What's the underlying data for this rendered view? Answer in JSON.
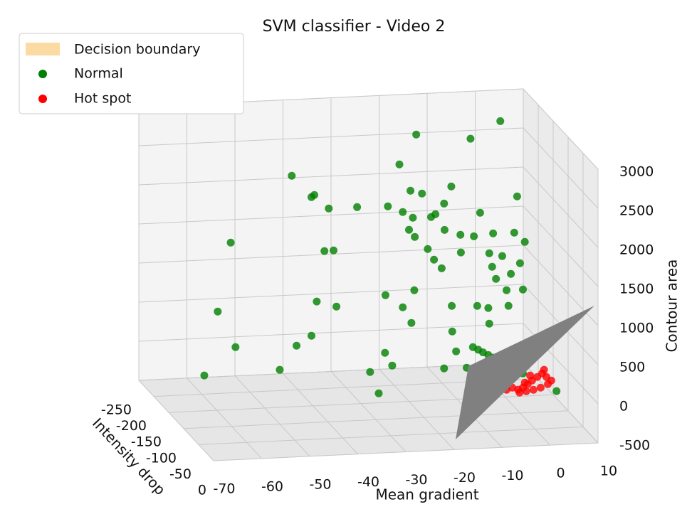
{
  "chart_data": {
    "type": "scatter3d",
    "title": "SVM classifier - Video 2",
    "xlabel": "Mean gradient",
    "ylabel": "Intensity drop",
    "zlabel": "Contour area",
    "xlim": [
      -70,
      10
    ],
    "ylim": [
      -250,
      0
    ],
    "zlim": [
      -500,
      3000
    ],
    "xticks": [
      -70,
      -60,
      -50,
      -40,
      -30,
      -20,
      -10,
      0,
      10
    ],
    "yticks": [
      -250,
      -200,
      -150,
      -100,
      -50,
      0
    ],
    "zticks": [
      -500,
      0,
      500,
      1000,
      1500,
      2000,
      2500,
      3000
    ],
    "grid": true,
    "legend": "upper left",
    "boundary": {
      "name": "Decision boundary",
      "color": "#fbdba3"
    },
    "series": [
      {
        "name": "Normal",
        "color": "#008000",
        "x": [
          -1,
          -18.5,
          -7.2,
          -22,
          -44.4,
          -39.7,
          -40.3,
          -19.7,
          -17.3,
          -11.2,
          -12.7,
          2.5,
          -36.7,
          -30.8,
          -24.4,
          -21.3,
          -19.2,
          -15.4,
          -14.5,
          -5.2,
          -57.1,
          -20,
          -18.8,
          -12.6,
          -9.3,
          -6.5,
          -2.5,
          1.9,
          4.1,
          -37.6,
          -35.7,
          -16.1,
          -14.8,
          -9.2,
          -13.2,
          -3.3,
          -0.6,
          3.1,
          1.2,
          -2.7,
          -1.9,
          3.7,
          0.3,
          -59.8,
          -39.2,
          -35.1,
          -24.9,
          -18.9,
          -21.3,
          -11.1,
          -3.5,
          -5.8,
          0.7,
          -19.5,
          -11,
          -3.3,
          -56.1,
          -43.4,
          -40.3,
          -25,
          -10.2,
          -28.1,
          -46.9,
          -23.5,
          -62.6,
          -26.3,
          -12.7,
          10.7,
          -8,
          -6.7,
          -5.6,
          -4.6,
          -3.5,
          -2.5,
          -1.5,
          -0.4,
          0.6,
          1.6,
          2.7,
          3.7
        ],
        "y": [
          -150,
          -150,
          -150,
          -150,
          -150,
          -150,
          -150,
          -150,
          -150,
          -150,
          -150,
          -150,
          -150,
          -150,
          -150,
          -150,
          -150,
          -150,
          -150,
          -150,
          -150,
          -150,
          -150,
          -150,
          -150,
          -150,
          -150,
          -150,
          -150,
          -150,
          -150,
          -150,
          -150,
          -150,
          -150,
          -150,
          -150,
          -150,
          -150,
          -150,
          -150,
          -150,
          -150,
          -150,
          -150,
          -150,
          -150,
          -150,
          -150,
          -150,
          -150,
          -150,
          -150,
          -150,
          -150,
          -150,
          -150,
          -150,
          -150,
          -150,
          -150,
          -150,
          -150,
          -150,
          -150,
          -150,
          -150,
          -150,
          -150,
          -150,
          -150,
          -150,
          -150,
          -150,
          -150,
          -150,
          -150,
          -150,
          -150,
          -150
        ],
        "z": [
          3030,
          2908,
          2822,
          2536,
          2454,
          2195,
          2170,
          2193,
          2150,
          2223,
          2009,
          2057,
          2014,
          2015,
          2006,
          1925,
          1846,
          1844,
          1878,
          1870,
          1636,
          1694,
          1600,
          1672,
          1600,
          1573,
          1599,
          1595,
          1471,
          1472,
          1475,
          1437,
          1297,
          1373,
          1183,
          1346,
          1303,
          1201,
          1070,
          1172,
          1015,
          863,
          864,
          762,
          831,
          755,
          872,
          918,
          707,
          696,
          647,
          681,
          663,
          502,
          368,
          446,
          296,
          279,
          397,
          135,
          112,
          -101,
          -20,
          -32,
          -48,
          -379,
          -99,
          -456,
          -104,
          156,
          120,
          83,
          46,
          10,
          -26,
          -64,
          -100,
          -136,
          -173,
          -210
        ]
      },
      {
        "name": "Hot spot",
        "color": "#ff0000",
        "x": [
          0.3,
          1.5,
          2.7,
          3.7,
          4.7,
          5.6,
          6.7,
          7.7,
          8.6,
          8.9,
          7.4,
          5.9,
          4.4,
          3,
          8.1,
          9.6,
          5.2,
          4.1
        ],
        "y": [
          -150,
          -150,
          -150,
          -150,
          -150,
          -150,
          -150,
          -150,
          -150,
          -150,
          -150,
          -150,
          -150,
          -150,
          -150,
          -150,
          -150,
          -150
        ],
        "z": [
          -409,
          -385,
          -415,
          -392,
          -349,
          -306,
          -264,
          -221,
          -269,
          -361,
          -402,
          -425,
          -439,
          -453,
          -176,
          -317,
          -241,
          -329
        ]
      }
    ]
  }
}
